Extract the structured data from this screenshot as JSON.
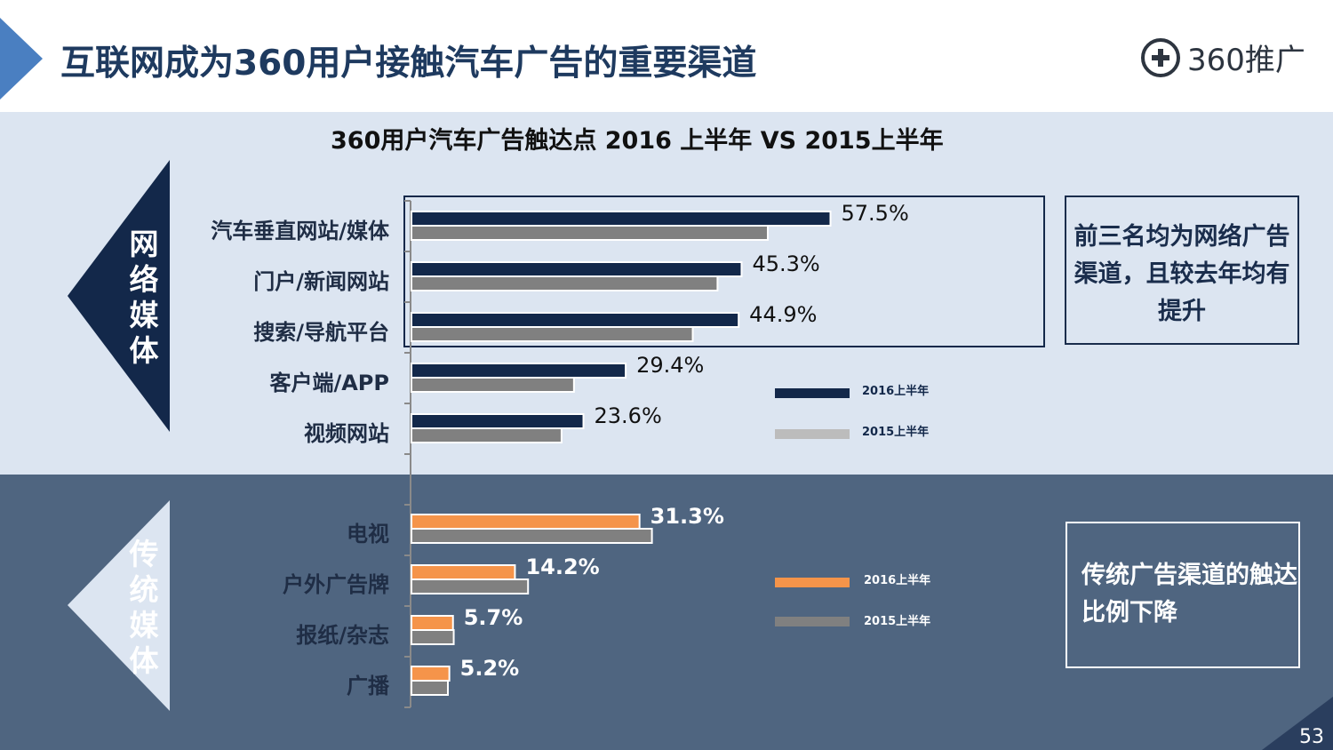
{
  "header": {
    "title": "互联网成为360用户接触汽车广告的重要渠道",
    "logo_text": "360推广"
  },
  "chart_title": "360用户汽车广告触达点 2016 上半年 VS 2015上半年",
  "sections": {
    "online": "网络媒体",
    "traditional": "传统媒体"
  },
  "notes": {
    "online": "前三名均为网络广告渠道，且较去年均有提升",
    "traditional": "传统广告渠道的触达比例下降"
  },
  "legend_online": [
    "2016上半年",
    "2015上半年"
  ],
  "legend_traditional": [
    "2016上半年",
    "2015上半年"
  ],
  "colors": {
    "navy": "#13284a",
    "gray": "#808080",
    "light_gray": "#bcbcbc",
    "orange": "#f5944a",
    "band_light": "#dce5f1",
    "band_dark": "#4f6580"
  },
  "chart_data": [
    {
      "type": "bar",
      "orientation": "horizontal",
      "group": "网络媒体",
      "categories": [
        "汽车垂直网站/媒体",
        "门户/新闻网站",
        "搜索/导航平台",
        "客户端/APP",
        "视频网站"
      ],
      "series": [
        {
          "name": "2016上半年",
          "values": [
            57.5,
            45.3,
            44.9,
            29.4,
            23.6
          ],
          "labels": [
            "57.5%",
            "45.3%",
            "44.9%",
            "29.4%",
            "23.6%"
          ]
        },
        {
          "name": "2015上半年",
          "values": [
            48.9,
            42.0,
            38.6,
            22.3,
            20.6
          ]
        }
      ]
    },
    {
      "type": "bar",
      "orientation": "horizontal",
      "group": "传统媒体",
      "categories": [
        "电视",
        "户外广告牌",
        "报纸/杂志",
        "广播"
      ],
      "series": [
        {
          "name": "2016上半年",
          "values": [
            31.3,
            14.2,
            5.7,
            5.2
          ],
          "labels": [
            "31.3%",
            "14.2%",
            "5.7%",
            "5.2%"
          ]
        },
        {
          "name": "2015上半年",
          "values": [
            33.0,
            16.0,
            5.8,
            5.0
          ]
        }
      ]
    }
  ],
  "page_number": "53"
}
